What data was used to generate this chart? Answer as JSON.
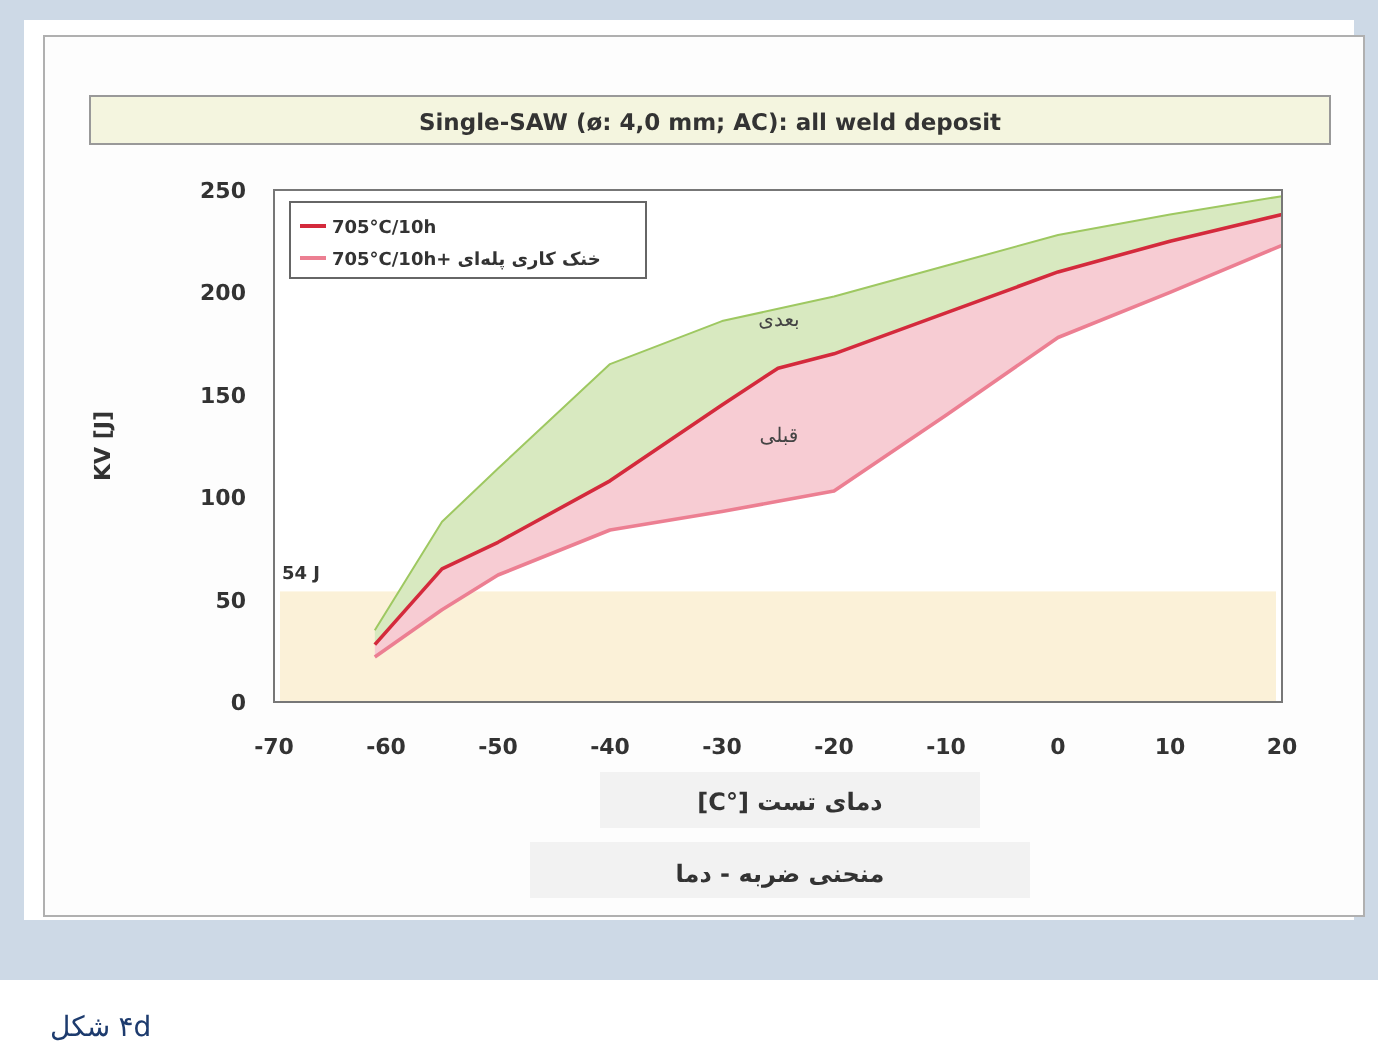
{
  "chart_data": {
    "type": "line",
    "title": "Single-SAW (ø: 4,0 mm; AC): all weld deposit",
    "subtitle": "منحنی ضربه - دما",
    "xlabel": "دمای تست [°C]",
    "ylabel": "KV [J]",
    "xlim": [
      -70,
      20
    ],
    "xticks": [
      -70,
      -60,
      -50,
      -40,
      -30,
      -20,
      -10,
      0,
      10,
      20
    ],
    "ylim": [
      0,
      250
    ],
    "yticks": [
      0,
      50,
      100,
      150,
      200,
      250
    ],
    "grid": false,
    "legend": "top left",
    "marker": "none",
    "line_style": "solid",
    "series": [
      {
        "type": "line",
        "color": "#9ec861",
        "x": [
          -61,
          -55,
          -50,
          -40,
          -30,
          -25,
          -20,
          -10,
          0,
          10,
          20
        ],
        "values": [
          35,
          88,
          114,
          165,
          186,
          192,
          198,
          213,
          228,
          238,
          247
        ],
        "lower": [
          28,
          65,
          78,
          108,
          145,
          163,
          170,
          190,
          210,
          225,
          238
        ],
        "upper": [
          35,
          88,
          114,
          165,
          186,
          192,
          198,
          213,
          228,
          238,
          247
        ]
      },
      {
        "name": "705°C/10h",
        "color": "#d42a3c",
        "x": [
          -61,
          -55,
          -50,
          -40,
          -30,
          -25,
          -20,
          -10,
          0,
          10,
          20
        ],
        "values": [
          28,
          65,
          78,
          108,
          145,
          163,
          170,
          190,
          210,
          225,
          238
        ]
      },
      {
        "name": "705°C/10h+ خنک کاری پله‌ای",
        "color": "#ec7f92",
        "x": [
          -61,
          -55,
          -50,
          -40,
          -30,
          -25,
          -20,
          -10,
          0,
          10,
          20
        ],
        "values": [
          22,
          45,
          62,
          84,
          93,
          98,
          103,
          140,
          178,
          200,
          223
        ],
        "lower": [
          22,
          45,
          62,
          84,
          93,
          98,
          103,
          140,
          178,
          200,
          223
        ],
        "upper": [
          28,
          65,
          78,
          108,
          145,
          163,
          170,
          190,
          210,
          225,
          238
        ]
      }
    ],
    "bands": [
      {
        "axis": "y",
        "from": 0,
        "to": 54,
        "label": "54 J",
        "color": "#fbf1d8"
      }
    ],
    "annotations": [
      "بعدی",
      "قبلی",
      "شکل ۴d"
    ]
  }
}
